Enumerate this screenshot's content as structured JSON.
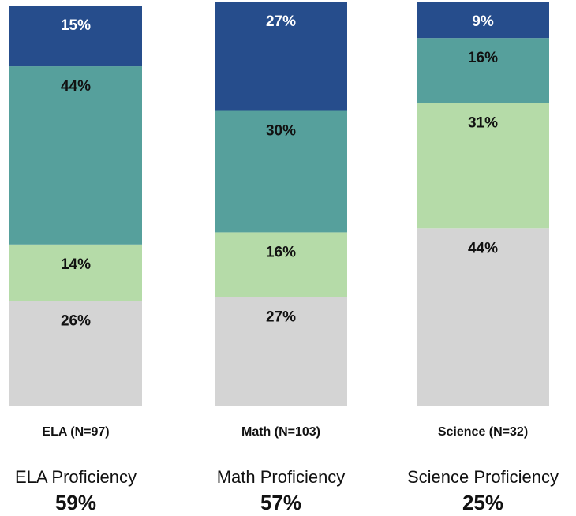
{
  "chart_data": {
    "type": "bar",
    "stacked": true,
    "categories": [
      "ELA (N=97)",
      "Math (N=103)",
      "Science (N=32)"
    ],
    "ylim": [
      0,
      100
    ],
    "series": [
      {
        "color": "#d4d4d4",
        "values": [
          26,
          27,
          44
        ],
        "value_labels": [
          "26%",
          "27%",
          "44%"
        ]
      },
      {
        "color": "#b5dba8",
        "values": [
          14,
          16,
          31
        ],
        "value_labels": [
          "14%",
          "16%",
          "31%"
        ]
      },
      {
        "color": "#56a09c",
        "values": [
          44,
          30,
          16
        ],
        "value_labels": [
          "44%",
          "30%",
          "16%"
        ]
      },
      {
        "color": "#264d8c",
        "values": [
          15,
          27,
          9
        ],
        "value_labels": [
          "15%",
          "27%",
          "9%"
        ]
      }
    ],
    "summary_titles": [
      "ELA Proficiency",
      "Math Proficiency",
      "Science Proficiency"
    ],
    "summary_values": [
      59,
      57,
      25
    ],
    "summary_value_labels": [
      "59%",
      "57%",
      "25%"
    ]
  }
}
